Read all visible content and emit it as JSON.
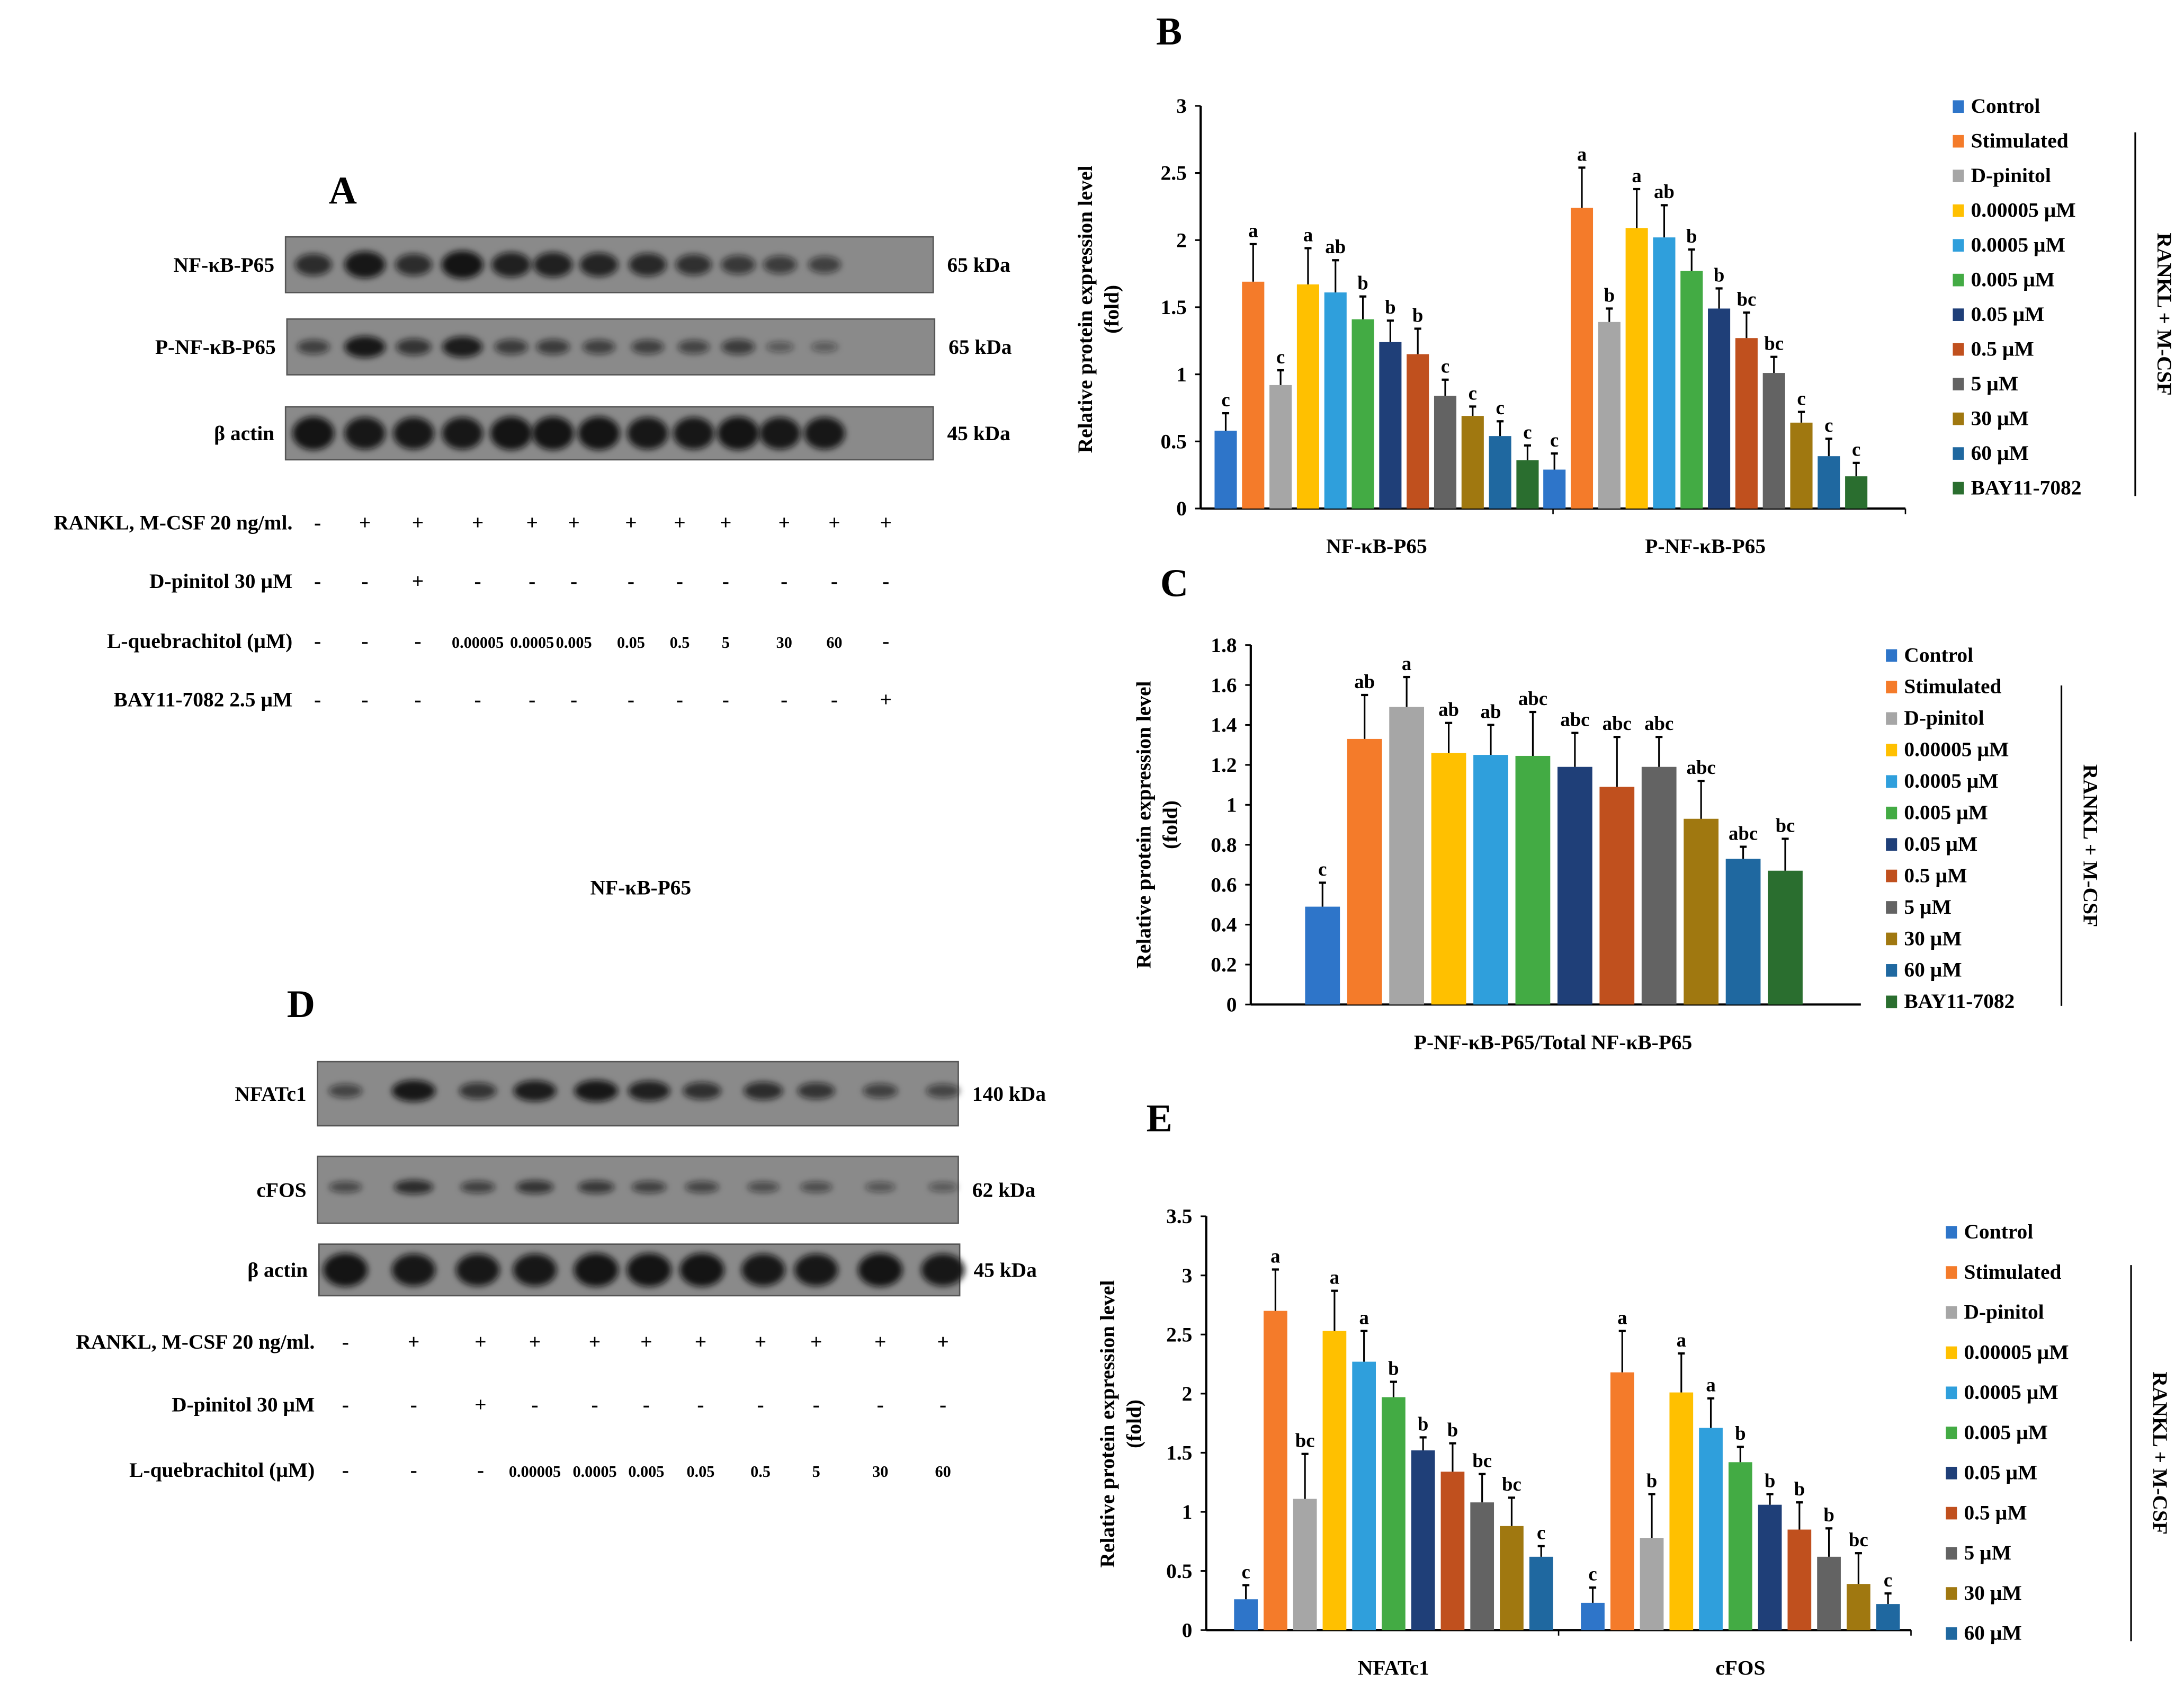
{
  "panels": {
    "A": "A",
    "B": "B",
    "C": "C",
    "D": "D",
    "E": "E"
  },
  "blot_A": {
    "rows": [
      {
        "label": "NF-κB-P65",
        "size": "65 kDa"
      },
      {
        "label": "P-NF-κB-P65",
        "size": "65 kDa"
      },
      {
        "label": "β actin",
        "size": "45 kDa"
      }
    ],
    "treatments": [
      {
        "label": "RANKL, M-CSF 20 ng/ml.",
        "values": [
          "-",
          "+",
          "+",
          "+",
          "+",
          "+",
          "+",
          "+",
          "+",
          "+",
          "+",
          "+"
        ]
      },
      {
        "label": "D-pinitol 30 µM",
        "values": [
          "-",
          "-",
          "+",
          "-",
          "-",
          "-",
          "-",
          "-",
          "-",
          "-",
          "-",
          "-"
        ]
      },
      {
        "label": "L-quebrachitol  (µM)",
        "values": [
          "-",
          "-",
          "-",
          "0.00005",
          "0.0005",
          "0.005",
          "0.05",
          "0.5",
          "5",
          "30",
          "60",
          "-"
        ]
      },
      {
        "label": "BAY11-7082  2.5 µM",
        "values": [
          "-",
          "-",
          "-",
          "-",
          "-",
          "-",
          "-",
          "-",
          "-",
          "-",
          "-",
          "+"
        ]
      }
    ],
    "caption": "NF-κB-P65"
  },
  "blot_D": {
    "rows": [
      {
        "label": "NFATc1",
        "size": "140 kDa"
      },
      {
        "label": "cFOS",
        "size": "62 kDa"
      },
      {
        "label": "β actin",
        "size": "45 kDa"
      }
    ],
    "treatments": [
      {
        "label": "RANKL, M-CSF 20 ng/ml.",
        "values": [
          "-",
          "+",
          "+",
          "+",
          "+",
          "+",
          "+",
          "+",
          "+",
          "+",
          "+"
        ]
      },
      {
        "label": "D-pinitol 30 µM",
        "values": [
          "-",
          "-",
          "+",
          "-",
          "-",
          "-",
          "-",
          "-",
          "-",
          "-",
          "-"
        ]
      },
      {
        "label": "L-quebrachitol  (µM)",
        "values": [
          "-",
          "-",
          "-",
          "0.00005",
          "0.0005",
          "0.005",
          "0.05",
          "0.5",
          "5",
          "30",
          "60"
        ]
      }
    ]
  },
  "chart_data": [
    {
      "id": "B",
      "type": "bar",
      "title": "",
      "ylabel": [
        "Relative protein expression level",
        "(fold)"
      ],
      "xlabel": "",
      "ylim": [
        0,
        3
      ],
      "ytick_step": 0.5,
      "grid": false,
      "categories": [
        "NF-κB-P65",
        "P-NF-κB-P65"
      ],
      "series": [
        {
          "name": "Control",
          "color": "#2e75c9",
          "values": [
            0.58,
            0.29
          ],
          "errors": [
            0.13,
            0.12
          ],
          "sig": [
            "c",
            "c"
          ]
        },
        {
          "name": "Stimulated",
          "color": "#f47b2a",
          "values": [
            1.69,
            2.24
          ],
          "errors": [
            0.28,
            0.3
          ],
          "sig": [
            "a",
            "a"
          ]
        },
        {
          "name": "D-pinitol",
          "color": "#a6a6a6",
          "values": [
            0.92,
            1.39
          ],
          "errors": [
            0.11,
            0.1
          ],
          "sig": [
            "c",
            "b"
          ]
        },
        {
          "name": "0.00005 µM",
          "color": "#ffc000",
          "values": [
            1.67,
            2.09
          ],
          "errors": [
            0.27,
            0.29
          ],
          "sig": [
            "a",
            "a"
          ]
        },
        {
          "name": "0.0005 µM",
          "color": "#2f9fdc",
          "values": [
            1.61,
            2.02
          ],
          "errors": [
            0.24,
            0.24
          ],
          "sig": [
            "ab",
            "ab"
          ]
        },
        {
          "name": "0.005 µM",
          "color": "#43ab44",
          "values": [
            1.41,
            1.77
          ],
          "errors": [
            0.17,
            0.16
          ],
          "sig": [
            "b",
            "b"
          ]
        },
        {
          "name": "0.05 µM",
          "color": "#1f3f78",
          "values": [
            1.24,
            1.49
          ],
          "errors": [
            0.16,
            0.15
          ],
          "sig": [
            "b",
            "b"
          ]
        },
        {
          "name": "0.5 µM",
          "color": "#c0501e",
          "values": [
            1.15,
            1.27
          ],
          "errors": [
            0.19,
            0.19
          ],
          "sig": [
            "b",
            "bc"
          ]
        },
        {
          "name": "5 µM",
          "color": "#636363",
          "values": [
            0.84,
            1.01
          ],
          "errors": [
            0.12,
            0.12
          ],
          "sig": [
            "c",
            "bc"
          ]
        },
        {
          "name": "30 µM",
          "color": "#a07810",
          "values": [
            0.69,
            0.64
          ],
          "errors": [
            0.07,
            0.08
          ],
          "sig": [
            "c",
            "c"
          ]
        },
        {
          "name": "60 µM",
          "color": "#1f68a0",
          "values": [
            0.54,
            0.39
          ],
          "errors": [
            0.11,
            0.13
          ],
          "sig": [
            "c",
            "c"
          ]
        },
        {
          "name": "BAY11-7082",
          "color": "#2a6e2f",
          "values": [
            0.36,
            0.24
          ],
          "errors": [
            0.11,
            0.1
          ],
          "sig": [
            "c",
            "c"
          ]
        }
      ],
      "legend": "right",
      "bracket_label": "RANKL + M-CSF"
    },
    {
      "id": "C",
      "type": "bar",
      "title": "",
      "ylabel": [
        "Relative protein expression level",
        "(fold)"
      ],
      "xlabel": "P-NF-κB-P65/Total NF-κB-P65",
      "ylim": [
        0,
        1.8
      ],
      "ytick_step": 0.2,
      "grid": false,
      "categories": [
        ""
      ],
      "series": [
        {
          "name": "Control",
          "color": "#2e75c9",
          "values": [
            0.49
          ],
          "errors": [
            0.12
          ],
          "sig": [
            "c"
          ]
        },
        {
          "name": "Stimulated",
          "color": "#f47b2a",
          "values": [
            1.33
          ],
          "errors": [
            0.22
          ],
          "sig": [
            "ab"
          ]
        },
        {
          "name": "D-pinitol",
          "color": "#a6a6a6",
          "values": [
            1.49
          ],
          "errors": [
            0.15
          ],
          "sig": [
            "a"
          ]
        },
        {
          "name": "0.00005 µM",
          "color": "#ffc000",
          "values": [
            1.26
          ],
          "errors": [
            0.15
          ],
          "sig": [
            "ab"
          ]
        },
        {
          "name": "0.0005 µM",
          "color": "#2f9fdc",
          "values": [
            1.25
          ],
          "errors": [
            0.15
          ],
          "sig": [
            "ab"
          ]
        },
        {
          "name": "0.005 µM",
          "color": "#43ab44",
          "values": [
            1.245
          ],
          "errors": [
            0.22
          ],
          "sig": [
            "abc"
          ]
        },
        {
          "name": "0.05 µM",
          "color": "#1f3f78",
          "values": [
            1.19
          ],
          "errors": [
            0.17
          ],
          "sig": [
            "abc"
          ]
        },
        {
          "name": "0.5 µM",
          "color": "#c0501e",
          "values": [
            1.09
          ],
          "errors": [
            0.25
          ],
          "sig": [
            "abc"
          ]
        },
        {
          "name": "5 µM",
          "color": "#636363",
          "values": [
            1.19
          ],
          "errors": [
            0.15
          ],
          "sig": [
            "abc"
          ]
        },
        {
          "name": "30 µM",
          "color": "#a07810",
          "values": [
            0.93
          ],
          "errors": [
            0.19
          ],
          "sig": [
            "abc"
          ]
        },
        {
          "name": "60 µM",
          "color": "#1f68a0",
          "values": [
            0.73
          ],
          "errors": [
            0.06
          ],
          "sig": [
            "abc"
          ]
        },
        {
          "name": "BAY11-7082",
          "color": "#2a6e2f",
          "values": [
            0.67
          ],
          "errors": [
            0.16
          ],
          "sig": [
            "bc"
          ]
        }
      ],
      "legend": "right",
      "bracket_label": "RANKL + M-CSF"
    },
    {
      "id": "E",
      "type": "bar",
      "title": "",
      "ylabel": [
        "Relative protein expression level",
        "(fold)"
      ],
      "xlabel": "",
      "ylim": [
        0,
        3.5
      ],
      "ytick_step": 0.5,
      "grid": false,
      "categories": [
        "NFATc1",
        "cFOS"
      ],
      "series": [
        {
          "name": "Control",
          "color": "#2e75c9",
          "values": [
            0.26,
            0.23
          ],
          "errors": [
            0.12,
            0.13
          ],
          "sig": [
            "c",
            "c"
          ]
        },
        {
          "name": "Stimulated",
          "color": "#f47b2a",
          "values": [
            2.7,
            2.18
          ],
          "errors": [
            0.35,
            0.35
          ],
          "sig": [
            "a",
            "a"
          ]
        },
        {
          "name": "D-pinitol",
          "color": "#a6a6a6",
          "values": [
            1.11,
            0.78
          ],
          "errors": [
            0.38,
            0.37
          ],
          "sig": [
            "bc",
            "b"
          ]
        },
        {
          "name": "0.00005 µM",
          "color": "#ffc000",
          "values": [
            2.53,
            2.01
          ],
          "errors": [
            0.34,
            0.33
          ],
          "sig": [
            "a",
            "a"
          ]
        },
        {
          "name": "0.0005 µM",
          "color": "#2f9fdc",
          "values": [
            2.27,
            1.71
          ],
          "errors": [
            0.26,
            0.25
          ],
          "sig": [
            "a",
            "a"
          ]
        },
        {
          "name": "0.005 µM",
          "color": "#43ab44",
          "values": [
            1.97,
            1.42
          ],
          "errors": [
            0.13,
            0.13
          ],
          "sig": [
            "b",
            "b"
          ]
        },
        {
          "name": "0.05 µM",
          "color": "#1f3f78",
          "values": [
            1.52,
            1.06
          ],
          "errors": [
            0.11,
            0.09
          ],
          "sig": [
            "b",
            "b"
          ]
        },
        {
          "name": "0.5 µM",
          "color": "#c0501e",
          "values": [
            1.34,
            0.85
          ],
          "errors": [
            0.24,
            0.23
          ],
          "sig": [
            "b",
            "b"
          ]
        },
        {
          "name": "5 µM",
          "color": "#636363",
          "values": [
            1.08,
            0.62
          ],
          "errors": [
            0.24,
            0.24
          ],
          "sig": [
            "bc",
            "b"
          ]
        },
        {
          "name": "30 µM",
          "color": "#a07810",
          "values": [
            0.88,
            0.39
          ],
          "errors": [
            0.24,
            0.26
          ],
          "sig": [
            "bc",
            "bc"
          ]
        },
        {
          "name": "60 µM",
          "color": "#1f68a0",
          "values": [
            0.62,
            0.22
          ],
          "errors": [
            0.09,
            0.09
          ],
          "sig": [
            "c",
            "c"
          ]
        }
      ],
      "legend": "right",
      "bracket_label": "RANKL + M-CSF"
    }
  ]
}
